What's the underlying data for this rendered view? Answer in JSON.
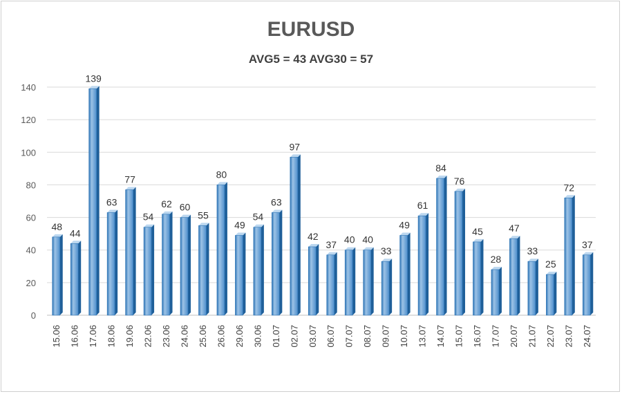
{
  "chart_data": {
    "type": "bar",
    "title": "EURUSD",
    "subtitle": "AVG5 = 43 AVG30 = 57",
    "categories": [
      "15.06",
      "16.06",
      "17.06",
      "18.06",
      "19.06",
      "22.06",
      "23.06",
      "24.06",
      "25.06",
      "26.06",
      "29.06",
      "30.06",
      "01.07",
      "02.07",
      "03.07",
      "06.07",
      "07.07",
      "08.07",
      "09.07",
      "10.07",
      "13.07",
      "14.07",
      "15.07",
      "16.07",
      "17.07",
      "20.07",
      "21.07",
      "22.07",
      "23.07",
      "24.07"
    ],
    "values": [
      48,
      44,
      139,
      63,
      77,
      54,
      62,
      60,
      55,
      80,
      49,
      54,
      63,
      97,
      42,
      37,
      40,
      40,
      33,
      49,
      61,
      84,
      76,
      45,
      28,
      47,
      33,
      25,
      72,
      37
    ],
    "ylim": [
      0,
      140
    ],
    "yticks": [
      0,
      20,
      40,
      60,
      80,
      100,
      120,
      140
    ],
    "grid": true,
    "legend": "none",
    "colors": {
      "bar_light": "#9dc3e6",
      "bar_mid": "#5b9bd5",
      "bar_dark": "#2e75b6",
      "grid": "#d9d9d9"
    }
  }
}
